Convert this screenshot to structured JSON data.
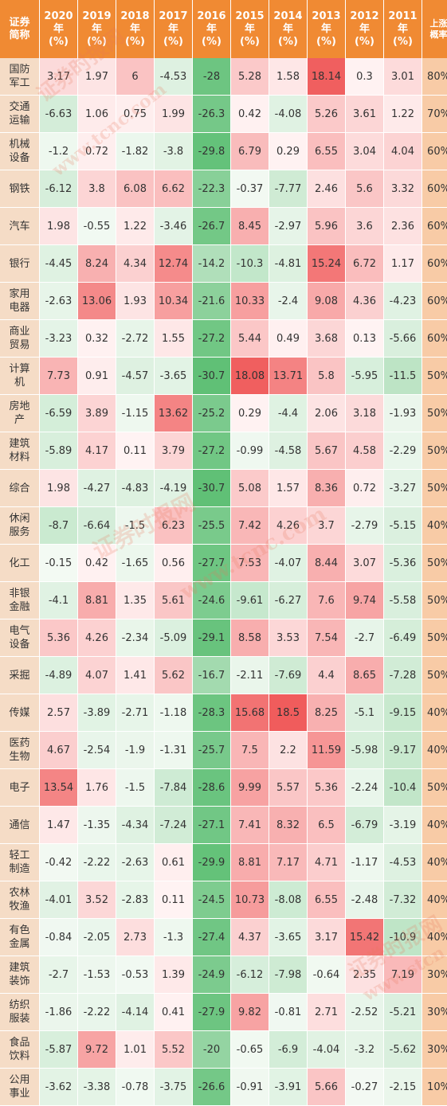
{
  "header": {
    "name": "证券\n简称",
    "years": [
      "2020\n年\n(%)",
      "2019\n年\n(%)",
      "2018\n年\n(%)",
      "2017\n年\n(%)",
      "2016\n年\n(%)",
      "2015\n年\n(%)",
      "2014\n年\n(%)",
      "2013\n年\n(%)",
      "2012\n年\n(%)",
      "2011\n年\n(%)"
    ],
    "rate": "上涨\n概率"
  },
  "colors": {
    "header_bg": "#f08a33",
    "name_bg": "#f5dcc6",
    "rate_bg": "#f8cba6",
    "positive": "#f05a5a",
    "negative": "#5fbf74"
  },
  "rows": [
    {
      "name": "国防\n军工",
      "values": [
        "3.17",
        "1.97",
        "6",
        "-4.53",
        "-28",
        "5.28",
        "1.58",
        "18.14",
        "0.3",
        "3.01"
      ],
      "rate": "80%"
    },
    {
      "name": "交通\n运输",
      "values": [
        "-6.63",
        "1.06",
        "0.75",
        "1.99",
        "-26.3",
        "0.42",
        "-4.08",
        "5.26",
        "3.61",
        "1.22"
      ],
      "rate": "70%"
    },
    {
      "name": "机械\n设备",
      "values": [
        "-1.2",
        "0.72",
        "-1.82",
        "-3.8",
        "-29.8",
        "6.79",
        "0.29",
        "6.55",
        "3.04",
        "4.04"
      ],
      "rate": "60%"
    },
    {
      "name": "钢铁",
      "values": [
        "-6.12",
        "3.8",
        "6.08",
        "6.62",
        "-22.3",
        "-0.37",
        "-7.77",
        "2.46",
        "5.6",
        "3.32"
      ],
      "rate": "60%"
    },
    {
      "name": "汽车",
      "values": [
        "1.98",
        "-0.55",
        "1.22",
        "-3.46",
        "-26.7",
        "8.45",
        "-2.97",
        "5.96",
        "3.6",
        "2.36"
      ],
      "rate": "60%"
    },
    {
      "name": "银行",
      "values": [
        "-4.45",
        "8.24",
        "4.34",
        "12.74",
        "-14.2",
        "-10.3",
        "-4.81",
        "15.24",
        "6.72",
        "1.17"
      ],
      "rate": "60%"
    },
    {
      "name": "家用\n电器",
      "values": [
        "-2.63",
        "13.06",
        "1.93",
        "10.34",
        "-21.6",
        "10.33",
        "-2.4",
        "9.08",
        "4.36",
        "-4.23"
      ],
      "rate": "60%"
    },
    {
      "name": "商业\n贸易",
      "values": [
        "-3.23",
        "0.32",
        "-2.72",
        "1.55",
        "-27.2",
        "5.44",
        "0.49",
        "3.68",
        "0.13",
        "-5.66"
      ],
      "rate": "60%"
    },
    {
      "name": "计算\n机",
      "values": [
        "7.73",
        "0.91",
        "-4.57",
        "-3.65",
        "-30.7",
        "18.08",
        "13.71",
        "5.8",
        "-5.95",
        "-11.5"
      ],
      "rate": "50%"
    },
    {
      "name": "房地\n产",
      "values": [
        "-6.59",
        "3.89",
        "-1.15",
        "13.62",
        "-25.2",
        "0.29",
        "-4.4",
        "2.06",
        "3.18",
        "-1.93"
      ],
      "rate": "50%"
    },
    {
      "name": "建筑\n材料",
      "values": [
        "-5.89",
        "4.17",
        "0.11",
        "3.79",
        "-27.2",
        "-0.99",
        "-4.58",
        "5.67",
        "4.58",
        "-2.29"
      ],
      "rate": "50%"
    },
    {
      "name": "综合",
      "values": [
        "1.98",
        "-4.27",
        "-4.83",
        "-4.19",
        "-30.7",
        "5.08",
        "1.57",
        "8.36",
        "0.72",
        "-3.27"
      ],
      "rate": "50%"
    },
    {
      "name": "休闲\n服务",
      "values": [
        "-8.7",
        "-6.64",
        "-1.5",
        "6.23",
        "-25.5",
        "7.42",
        "4.26",
        "3.7",
        "-2.79",
        "-5.15"
      ],
      "rate": "40%"
    },
    {
      "name": "化工",
      "values": [
        "-0.15",
        "0.42",
        "-1.65",
        "0.56",
        "-27.7",
        "7.53",
        "-4.07",
        "8.44",
        "3.07",
        "-5.36"
      ],
      "rate": "50%"
    },
    {
      "name": "非银\n金融",
      "values": [
        "-4.1",
        "8.81",
        "1.35",
        "5.61",
        "-24.6",
        "-9.61",
        "-6.27",
        "7.6",
        "9.74",
        "-5.58"
      ],
      "rate": "50%"
    },
    {
      "name": "电气\n设备",
      "values": [
        "5.36",
        "4.26",
        "-2.34",
        "-5.09",
        "-29.1",
        "8.58",
        "3.53",
        "7.54",
        "-2.7",
        "-6.49"
      ],
      "rate": "50%"
    },
    {
      "name": "采掘",
      "values": [
        "-4.89",
        "4.07",
        "1.41",
        "5.62",
        "-16.7",
        "-2.11",
        "-7.69",
        "4.4",
        "8.65",
        "-7.28"
      ],
      "rate": "50%"
    },
    {
      "name": "传媒",
      "values": [
        "2.57",
        "-3.89",
        "-2.71",
        "-1.18",
        "-28.3",
        "15.68",
        "18.5",
        "8.25",
        "-5.1",
        "-9.15"
      ],
      "rate": "40%"
    },
    {
      "name": "医药\n生物",
      "values": [
        "4.67",
        "-2.54",
        "-1.9",
        "-1.31",
        "-25.7",
        "7.5",
        "2.2",
        "11.59",
        "-5.98",
        "-9.17"
      ],
      "rate": "40%"
    },
    {
      "name": "电子",
      "values": [
        "13.54",
        "1.76",
        "-1.5",
        "-7.84",
        "-28.6",
        "9.99",
        "5.57",
        "5.36",
        "-2.24",
        "-10.4"
      ],
      "rate": "50%"
    },
    {
      "name": "通信",
      "values": [
        "1.47",
        "-1.35",
        "-4.34",
        "-7.24",
        "-27.1",
        "7.41",
        "8.32",
        "6.5",
        "-6.79",
        "-3.19"
      ],
      "rate": "40%"
    },
    {
      "name": "轻工\n制造",
      "values": [
        "-0.42",
        "-2.22",
        "-2.63",
        "0.61",
        "-29.9",
        "8.81",
        "7.17",
        "4.71",
        "-1.17",
        "-4.53"
      ],
      "rate": "40%"
    },
    {
      "name": "农林\n牧渔",
      "values": [
        "-4.01",
        "3.52",
        "-2.83",
        "0.11",
        "-24.5",
        "10.73",
        "-8.08",
        "6.55",
        "-2.48",
        "-7.32"
      ],
      "rate": "40%"
    },
    {
      "name": "有色\n金属",
      "values": [
        "-0.84",
        "-2.05",
        "2.73",
        "-1.3",
        "-27.4",
        "4.37",
        "-3.65",
        "3.17",
        "15.42",
        "-10.9"
      ],
      "rate": "40%"
    },
    {
      "name": "建筑\n装饰",
      "values": [
        "-2.7",
        "-1.53",
        "-0.53",
        "1.39",
        "-24.9",
        "-6.12",
        "-7.98",
        "-0.64",
        "2.35",
        "7.19"
      ],
      "rate": "30%"
    },
    {
      "name": "纺织\n服装",
      "values": [
        "-1.86",
        "-2.22",
        "-4.14",
        "0.41",
        "-27.9",
        "9.82",
        "-0.81",
        "2.71",
        "-2.52",
        "-5.21"
      ],
      "rate": "30%"
    },
    {
      "name": "食品\n饮料",
      "values": [
        "-5.87",
        "9.72",
        "1.01",
        "5.52",
        "-20",
        "-0.65",
        "-6.9",
        "-4.04",
        "-3.2",
        "-5.62"
      ],
      "rate": "30%"
    },
    {
      "name": "公用\n事业",
      "values": [
        "-3.62",
        "-3.38",
        "-0.78",
        "-3.75",
        "-26.6",
        "-0.91",
        "-3.91",
        "5.66",
        "-0.27",
        "-2.15"
      ],
      "rate": "10%"
    }
  ],
  "watermarks": [
    "证券时报网",
    "www.tcnc.com",
    "证券时报网",
    "www.tcnc.com",
    "证券时报网",
    "www.stcn"
  ]
}
